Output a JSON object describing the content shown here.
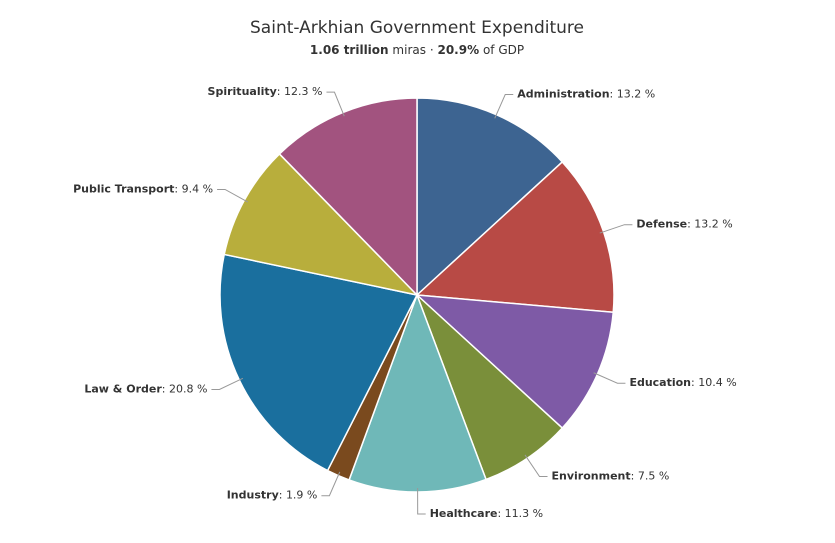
{
  "chart_data": {
    "type": "pie",
    "title": "Saint-Arkhian Government Expenditure",
    "subtitle": {
      "total": "1.06 trillion",
      "unit": "miras",
      "separator": "·",
      "gdp_share": "20.9%",
      "gdp_suffix": "of GDP"
    },
    "categories": [
      "Administration",
      "Defense",
      "Education",
      "Environment",
      "Healthcare",
      "Industry",
      "Law & Order",
      "Public Transport",
      "Spirituality"
    ],
    "values": [
      13.2,
      13.2,
      10.4,
      7.5,
      11.3,
      1.9,
      20.8,
      9.4,
      12.3
    ],
    "value_labels": [
      "13.2 %",
      "13.2 %",
      "10.4 %",
      "7.5 %",
      "11.3 %",
      "1.9 %",
      "20.8 %",
      "9.4 %",
      "12.3 %"
    ],
    "label_separator": ": ",
    "colors": [
      "#3d6491",
      "#b84a45",
      "#7e5aa6",
      "#7a8f3a",
      "#6fb8b8",
      "#7a4a1e",
      "#1a6f9e",
      "#b8ae3c",
      "#a2537f"
    ]
  }
}
